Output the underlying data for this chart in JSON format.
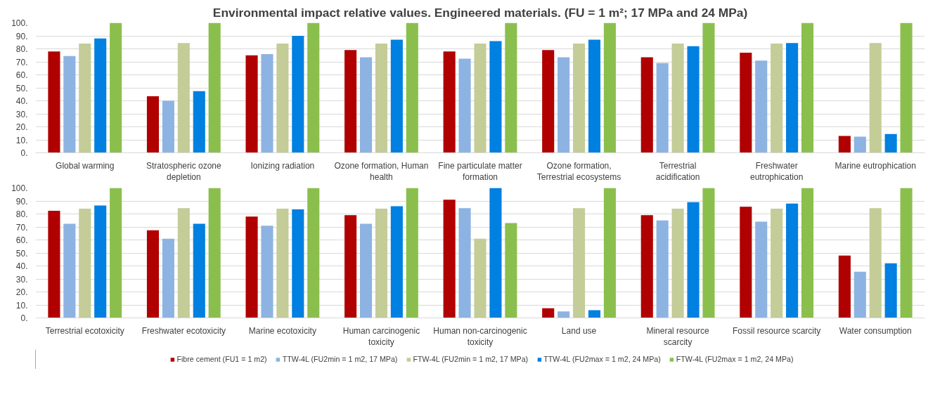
{
  "chart_data": [
    {
      "type": "bar",
      "title": "Environmental impact relative values. Engineered materials. (FU = 1 m²; 17 MPa and 24 MPa)",
      "categories": [
        "Global warming",
        "Stratospheric ozone depletion",
        "Ionizing radiation",
        "Ozone formation, Human health",
        "Fine particulate matter formation",
        "Ozone formation, Terrestrial ecosystems",
        "Terrestrial acidification",
        "Freshwater eutrophication",
        "Marine eutrophication"
      ],
      "series": [
        {
          "color": "#b00000",
          "values": [
            78,
            43.5,
            75,
            79,
            78,
            79,
            73.5,
            77,
            13
          ]
        },
        {
          "color": "#8db3e2",
          "values": [
            74.5,
            40,
            76,
            73.5,
            72.5,
            73.5,
            69,
            71,
            12.5
          ]
        },
        {
          "color": "#c4cc98",
          "values": [
            84,
            84.5,
            84,
            84,
            84,
            84,
            84,
            84,
            84.5
          ]
        },
        {
          "color": "#0080e0",
          "values": [
            88,
            47.5,
            90,
            87,
            86,
            87,
            82,
            84.5,
            14.5
          ]
        },
        {
          "color": "#8bbf4d",
          "values": [
            100,
            100,
            100,
            100,
            100,
            100,
            100,
            100,
            100
          ]
        }
      ],
      "ylim": [
        0,
        100
      ],
      "yticks": [
        {
          "value": 0,
          "label": "0."
        },
        {
          "value": 10,
          "label": "10."
        },
        {
          "value": 20,
          "label": "20."
        },
        {
          "value": 30,
          "label": "30."
        },
        {
          "value": 40,
          "label": "40."
        },
        {
          "value": 50,
          "label": "50."
        },
        {
          "value": 60,
          "label": "60."
        },
        {
          "value": 70,
          "label": "70."
        },
        {
          "value": 80,
          "label": "80."
        },
        {
          "value": 90,
          "label": "90."
        },
        {
          "value": 100,
          "label": "100."
        }
      ],
      "grid": "y"
    },
    {
      "type": "bar",
      "categories": [
        "Terrestrial ecotoxicity",
        "Freshwater ecotoxicity",
        "Marine ecotoxicity",
        "Human carcinogenic toxicity",
        "Human non-carcinogenic toxicity",
        "Land use",
        "Mineral resource scarcity",
        "Fossil resource scarcity",
        "Water consumption"
      ],
      "series": [
        {
          "name": "Fibre cement (FU1 = 1 m2)",
          "color": "#b00000",
          "values": [
            82.5,
            67.5,
            78,
            79,
            91,
            7.5,
            79,
            85.5,
            48
          ]
        },
        {
          "name": "TTW-4L (FU2min = 1 m2, 17 MPa)",
          "color": "#8db3e2",
          "values": [
            72.5,
            61,
            71,
            72.5,
            84.5,
            5,
            75,
            74,
            35.5
          ]
        },
        {
          "name": "FTW-4L (FU2min = 1 m2, 17 MPa)",
          "color": "#c4cc98",
          "values": [
            84,
            84.5,
            84,
            84,
            61,
            84.5,
            84,
            84,
            84.5
          ]
        },
        {
          "name": "TTW-4L (FU2max = 1 m2, 24 MPa)",
          "color": "#0080e0",
          "values": [
            86.5,
            72.5,
            83.5,
            86,
            100,
            6,
            89,
            88,
            42
          ]
        },
        {
          "name": "FTW-4L (FU2max = 1 m2, 24 MPa)",
          "color": "#8bbf4d",
          "values": [
            100,
            100,
            100,
            100,
            73,
            100,
            100,
            100,
            100
          ]
        }
      ],
      "ylim": [
        0,
        100
      ],
      "yticks": [
        {
          "value": 0,
          "label": "0."
        },
        {
          "value": 10,
          "label": "10."
        },
        {
          "value": 20,
          "label": "20."
        },
        {
          "value": 30,
          "label": "30."
        },
        {
          "value": 40,
          "label": "40."
        },
        {
          "value": 50,
          "label": "50."
        },
        {
          "value": 60,
          "label": "60."
        },
        {
          "value": 70,
          "label": "70."
        },
        {
          "value": 80,
          "label": "80."
        },
        {
          "value": 90,
          "label": "90."
        },
        {
          "value": 100,
          "label": "100."
        }
      ],
      "grid": "y",
      "legend": "bottom"
    }
  ]
}
